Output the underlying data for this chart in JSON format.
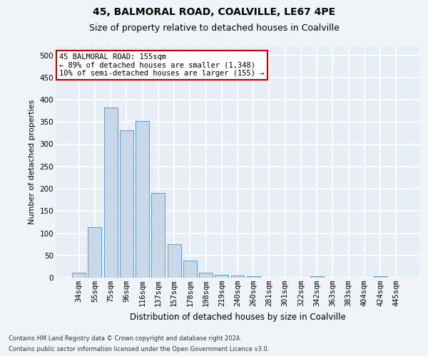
{
  "title1": "45, BALMORAL ROAD, COALVILLE, LE67 4PE",
  "title2": "Size of property relative to detached houses in Coalville",
  "xlabel": "Distribution of detached houses by size in Coalville",
  "ylabel": "Number of detached properties",
  "categories": [
    "34sqm",
    "55sqm",
    "75sqm",
    "96sqm",
    "116sqm",
    "137sqm",
    "157sqm",
    "178sqm",
    "198sqm",
    "219sqm",
    "240sqm",
    "260sqm",
    "281sqm",
    "301sqm",
    "322sqm",
    "342sqm",
    "363sqm",
    "383sqm",
    "404sqm",
    "424sqm",
    "445sqm"
  ],
  "values": [
    12,
    114,
    383,
    331,
    352,
    190,
    76,
    38,
    12,
    7,
    5,
    3,
    0,
    0,
    0,
    4,
    0,
    0,
    0,
    4,
    0
  ],
  "bar_color": "#c8d8e8",
  "bar_edge_color": "#5b9bd5",
  "highlight_index": 6,
  "annotation_text": "45 BALMORAL ROAD: 155sqm\n← 89% of detached houses are smaller (1,348)\n10% of semi-detached houses are larger (155) →",
  "annotation_box_color": "#ffffff",
  "annotation_box_edge": "#cc0000",
  "footer1": "Contains HM Land Registry data © Crown copyright and database right 2024.",
  "footer2": "Contains public sector information licensed under the Open Government Licence v3.0.",
  "ylim": [
    0,
    520
  ],
  "yticks": [
    0,
    50,
    100,
    150,
    200,
    250,
    300,
    350,
    400,
    450,
    500
  ],
  "bg_color": "#e8eef5",
  "grid_color": "#ffffff",
  "fig_bg_color": "#f0f4f8",
  "title1_fontsize": 10,
  "title2_fontsize": 9,
  "axis_label_fontsize": 8,
  "tick_fontsize": 7.5
}
